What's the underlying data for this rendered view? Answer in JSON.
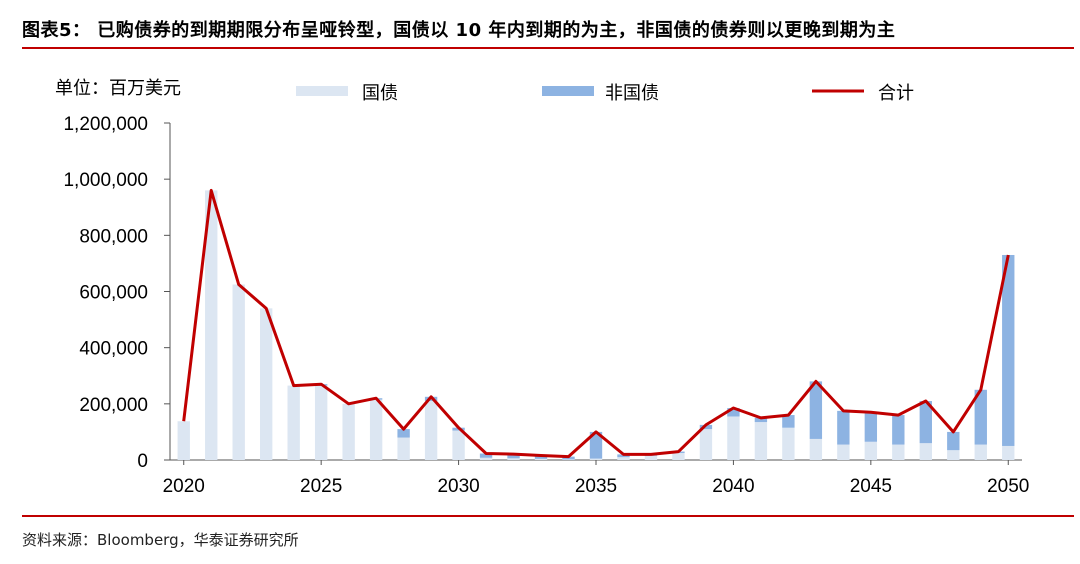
{
  "figure": {
    "title": "图表5：  已购债券的到期期限分布呈哑铃型，国债以 10 年内到期的为主，非国债的债券则以更晚到期为主",
    "source": "资料来源：Bloomberg，华泰证券研究所"
  },
  "chart_data": {
    "type": "bar",
    "unit_label": "单位：百万美元",
    "stacked": true,
    "x": [
      2020,
      2021,
      2022,
      2023,
      2024,
      2025,
      2026,
      2027,
      2028,
      2029,
      2030,
      2031,
      2032,
      2033,
      2034,
      2035,
      2036,
      2037,
      2038,
      2039,
      2040,
      2041,
      2042,
      2043,
      2044,
      2045,
      2046,
      2047,
      2048,
      2049,
      2050
    ],
    "series": [
      {
        "name": "国债",
        "color": "#dce6f2",
        "kind": "bar",
        "values": [
          138000,
          960000,
          625000,
          540000,
          265000,
          265000,
          200000,
          215000,
          80000,
          210000,
          105000,
          8000,
          6000,
          4000,
          2000,
          5000,
          10000,
          15000,
          25000,
          110000,
          155000,
          135000,
          115000,
          75000,
          55000,
          65000,
          55000,
          60000,
          35000,
          55000,
          50000
        ]
      },
      {
        "name": "非国债",
        "color": "#8db3e2",
        "kind": "bar",
        "values": [
          0,
          0,
          0,
          0,
          0,
          5000,
          0,
          5000,
          30000,
          15000,
          10000,
          15000,
          15000,
          12000,
          10000,
          95000,
          10000,
          5000,
          5000,
          15000,
          30000,
          15000,
          45000,
          205000,
          120000,
          105000,
          105000,
          150000,
          65000,
          195000,
          680000
        ]
      },
      {
        "name": "合计",
        "color": "#c00000",
        "kind": "line",
        "values": [
          138000,
          960000,
          625000,
          540000,
          265000,
          270000,
          200000,
          220000,
          110000,
          225000,
          115000,
          23000,
          21000,
          16000,
          12000,
          100000,
          20000,
          20000,
          30000,
          125000,
          185000,
          150000,
          160000,
          280000,
          175000,
          170000,
          160000,
          210000,
          100000,
          250000,
          730000
        ]
      }
    ],
    "ylim": [
      0,
      1200000
    ],
    "yticks": [
      "0",
      "200,000",
      "400,000",
      "600,000",
      "800,000",
      "1,000,000",
      "1,200,000"
    ],
    "xticks": [
      "2020",
      "2025",
      "2030",
      "2035",
      "2040",
      "2045",
      "2050"
    ],
    "grid": false,
    "legend_position": "top"
  }
}
